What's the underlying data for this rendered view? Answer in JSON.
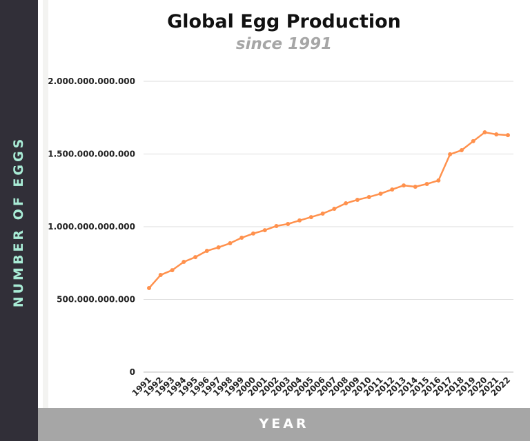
{
  "chart_data": {
    "type": "line",
    "title": "Global Egg Production",
    "subtitle": "since 1991",
    "xlabel": "YEAR",
    "ylabel": "NUMBER OF EGGS",
    "ylim": [
      0,
      2000000000000
    ],
    "yticks": [
      "0",
      "500.000.000.000",
      "1.000.000.000.000",
      "1.500.000.000.000",
      "2.000.000.000.000"
    ],
    "ytick_values": [
      0,
      500000000000,
      1000000000000,
      1500000000000,
      2000000000000
    ],
    "grid": true,
    "color": "#ff914d",
    "x": [
      "1991",
      "1992",
      "1993",
      "1994",
      "1995",
      "1996",
      "1997",
      "1998",
      "1999",
      "2000",
      "2001",
      "2002",
      "2003",
      "2004",
      "2005",
      "2006",
      "2007",
      "2008",
      "2009",
      "2010",
      "2011",
      "2012",
      "2013",
      "2014",
      "2015",
      "2016",
      "2017",
      "2018",
      "2019",
      "2020",
      "2021",
      "2022"
    ],
    "values": [
      578000000000.0,
      668000000000.0,
      701000000000.0,
      758000000000.0,
      791000000000.0,
      834000000000.0,
      858000000000.0,
      886000000000.0,
      924000000000.0,
      953000000000.0,
      976000000000.0,
      1005000000000.0,
      1019000000000.0,
      1043000000000.0,
      1066000000000.0,
      1090000000000.0,
      1123000000000.0,
      1161000000000.0,
      1185000000000.0,
      1204000000000.0,
      1227000000000.0,
      1256000000000.0,
      1284000000000.0,
      1275000000000.0,
      1294000000000.0,
      1318000000000.0,
      1498000000000.0,
      1526000000000.0,
      1588000000000.0,
      1649000000000.0,
      1635000000000.0,
      1630000000000.0
    ]
  }
}
